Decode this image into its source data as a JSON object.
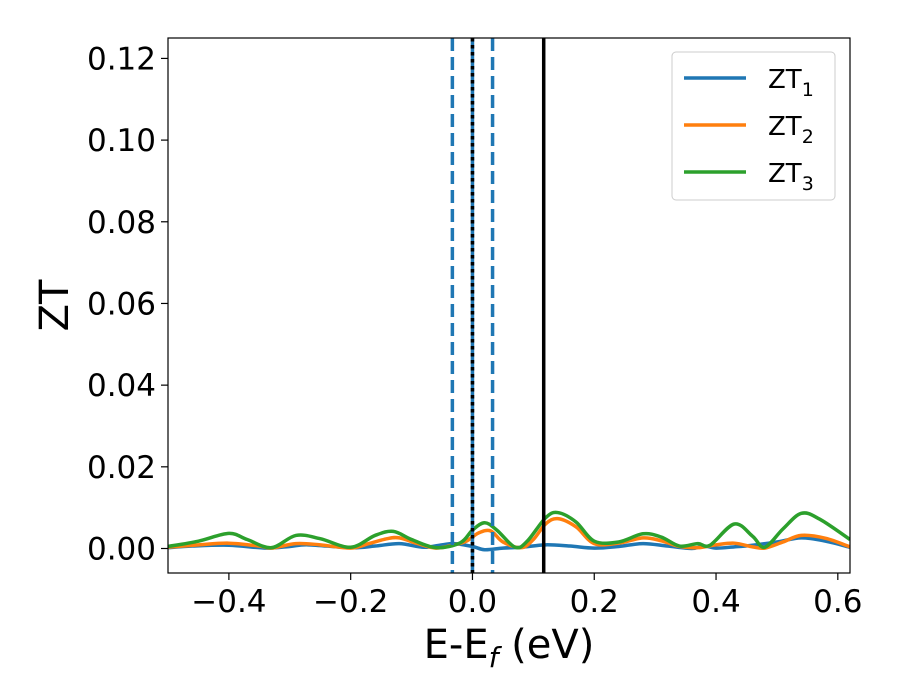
{
  "chart_data": {
    "type": "line",
    "xlabel": "E-E",
    "xlabel_sub": "f",
    "xlabel_unit": " (eV)",
    "ylabel": "ZT",
    "xlim": [
      -0.5,
      0.62
    ],
    "ylim": [
      -0.006,
      0.125
    ],
    "xticks": [
      -0.4,
      -0.2,
      0.0,
      0.2,
      0.4,
      0.6
    ],
    "xtick_labels": [
      "−0.4",
      "−0.2",
      "0.0",
      "0.2",
      "0.4",
      "0.6"
    ],
    "yticks": [
      0.0,
      0.02,
      0.04,
      0.06,
      0.08,
      0.1,
      0.12
    ],
    "ytick_labels": [
      "0.00",
      "0.02",
      "0.04",
      "0.06",
      "0.08",
      "0.10",
      "0.12"
    ],
    "grid": false,
    "legend_position": "top-right",
    "series": [
      {
        "name": "ZT",
        "sub": "1",
        "color": "#1f77b4",
        "x": [
          -0.5,
          -0.46,
          -0.4,
          -0.34,
          -0.3,
          -0.27,
          -0.2,
          -0.16,
          -0.12,
          -0.08,
          -0.05,
          -0.03,
          0.0,
          0.02,
          0.05,
          0.08,
          0.12,
          0.16,
          0.2,
          0.24,
          0.28,
          0.32,
          0.36,
          0.38,
          0.4,
          0.43,
          0.46,
          0.5,
          0.54,
          0.58,
          0.62
        ],
        "y": [
          0.0002,
          0.0006,
          0.0008,
          0.0001,
          0.0005,
          0.0009,
          0.0002,
          0.0006,
          0.0012,
          0.0003,
          0.0009,
          0.0012,
          0.0005,
          -0.0003,
          0.0001,
          0.0003,
          0.0009,
          0.0006,
          0.0001,
          0.0005,
          0.0012,
          0.0006,
          0.0,
          0.0006,
          0.0001,
          0.0004,
          0.0008,
          0.0016,
          0.0026,
          0.0018,
          0.0003
        ]
      },
      {
        "name": "ZT",
        "sub": "2",
        "color": "#ff7f0e",
        "x": [
          -0.5,
          -0.45,
          -0.4,
          -0.35,
          -0.33,
          -0.29,
          -0.25,
          -0.2,
          -0.17,
          -0.14,
          -0.12,
          -0.09,
          -0.06,
          -0.03,
          -0.01,
          0.01,
          0.03,
          0.05,
          0.08,
          0.1,
          0.12,
          0.14,
          0.17,
          0.2,
          0.24,
          0.28,
          0.31,
          0.34,
          0.37,
          0.4,
          0.43,
          0.46,
          0.48,
          0.51,
          0.54,
          0.58,
          0.62
        ],
        "y": [
          0.0003,
          0.0009,
          0.0013,
          0.0006,
          0.0001,
          0.0012,
          0.0009,
          0.0001,
          0.0012,
          0.0024,
          0.0026,
          0.0012,
          0.0001,
          0.0009,
          0.0018,
          0.0038,
          0.0043,
          0.0016,
          0.0002,
          0.0022,
          0.006,
          0.0073,
          0.0053,
          0.0012,
          0.0013,
          0.0026,
          0.0019,
          0.0005,
          0.0002,
          0.0009,
          0.0013,
          0.0004,
          0.0001,
          0.0016,
          0.0032,
          0.0025,
          0.0004
        ]
      },
      {
        "name": "ZT",
        "sub": "3",
        "color": "#2ca02c",
        "x": [
          -0.5,
          -0.45,
          -0.4,
          -0.37,
          -0.33,
          -0.29,
          -0.25,
          -0.2,
          -0.16,
          -0.13,
          -0.1,
          -0.06,
          -0.02,
          0.0,
          0.02,
          0.04,
          0.07,
          0.09,
          0.12,
          0.14,
          0.17,
          0.2,
          0.24,
          0.28,
          0.31,
          0.34,
          0.37,
          0.39,
          0.43,
          0.46,
          0.48,
          0.51,
          0.54,
          0.57,
          0.62
        ],
        "y": [
          0.0005,
          0.0018,
          0.0037,
          0.0022,
          0.0002,
          0.0032,
          0.0024,
          0.0003,
          0.0032,
          0.0042,
          0.0022,
          0.0002,
          0.0014,
          0.0045,
          0.0063,
          0.0045,
          0.0003,
          0.0018,
          0.0075,
          0.0088,
          0.0065,
          0.0018,
          0.0016,
          0.0036,
          0.0028,
          0.0006,
          0.0012,
          0.0008,
          0.006,
          0.003,
          0.0003,
          0.0048,
          0.0086,
          0.0072,
          0.0022
        ]
      }
    ],
    "vlines": [
      {
        "x": -0.033,
        "color": "#1f77b4",
        "style": "dashed"
      },
      {
        "x": 0.0,
        "color": "#1f77b4",
        "style": "solid"
      },
      {
        "x": 0.0,
        "color": "#000000",
        "style": "dotted"
      },
      {
        "x": 0.033,
        "color": "#1f77b4",
        "style": "dashed"
      },
      {
        "x": 0.117,
        "color": "#000000",
        "style": "solid"
      }
    ]
  }
}
